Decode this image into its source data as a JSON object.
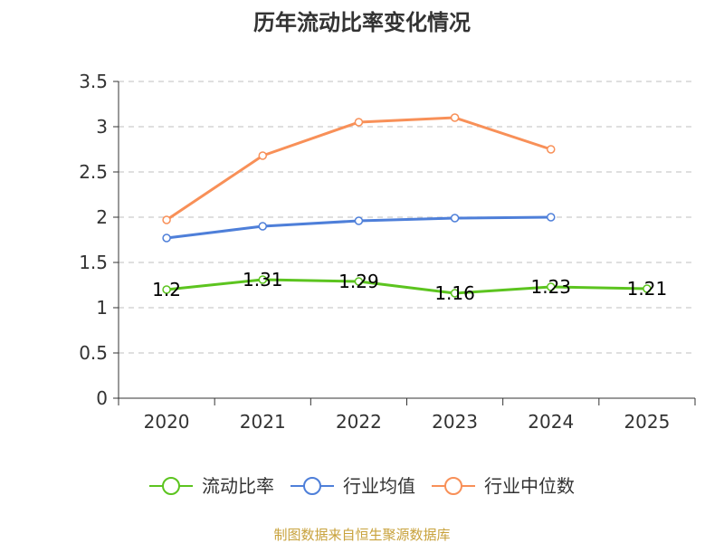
{
  "chart_data": {
    "type": "line",
    "title": "历年流动比率变化情况",
    "categories": [
      "2020",
      "2021",
      "2022",
      "2023",
      "2024",
      "2025"
    ],
    "ylim": [
      0,
      3.5
    ],
    "yticks": [
      0,
      0.5,
      1,
      1.5,
      2,
      2.5,
      3,
      3.5
    ],
    "ytick_labels": [
      "0",
      "0.5",
      "1",
      "1.5",
      "2",
      "2.5",
      "3",
      "3.5"
    ],
    "grid": true,
    "legend_position": "bottom",
    "series": [
      {
        "name": "流动比率",
        "color": "#5cc41f",
        "values": [
          1.2,
          1.31,
          1.29,
          1.16,
          1.23,
          1.21
        ],
        "labels": [
          "1.2",
          "1.31",
          "1.29",
          "1.16",
          "1.23",
          "1.21"
        ]
      },
      {
        "name": "行业均值",
        "color": "#4e7fd9",
        "values": [
          1.77,
          1.9,
          1.96,
          1.99,
          2.0,
          null
        ]
      },
      {
        "name": "行业中位数",
        "color": "#f89058",
        "values": [
          1.97,
          2.68,
          3.05,
          3.1,
          2.75,
          null
        ]
      }
    ]
  },
  "source": "制图数据来自恒生聚源数据库"
}
